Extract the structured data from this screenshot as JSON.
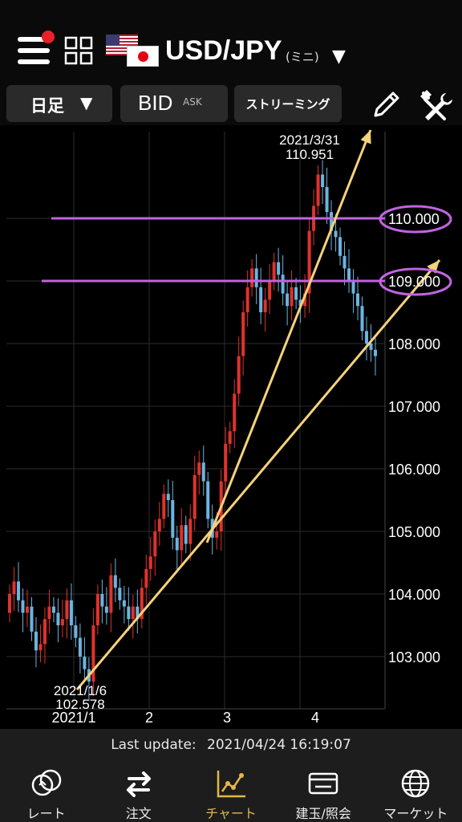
{
  "header": {
    "pair": "USD/JPY",
    "pair_sub": "(ミニ)",
    "menu_badge": true
  },
  "toolbar": {
    "period_label": "日足",
    "bid_label": "BID",
    "ask_label": "ASK",
    "streaming_label": "ストリーミング"
  },
  "chart_data": {
    "type": "candlestick",
    "y_ticks": [
      "110.000",
      "109.000",
      "108.000",
      "107.000",
      "106.000",
      "105.000",
      "104.000",
      "103.000"
    ],
    "x_ticks": [
      "2021/1",
      "2",
      "3",
      "4"
    ],
    "ylim": [
      102.2,
      111.4
    ],
    "high_marker": {
      "date": "2021/3/31",
      "value": "110.951"
    },
    "low_marker": {
      "date": "2021/1/6",
      "value": "102.578"
    },
    "horizontal_lines": [
      110.0,
      109.0
    ],
    "highlighted_levels": [
      "110.000",
      "109.000"
    ],
    "trendlines": [
      {
        "from": [
          "2021/1/6",
          102.58
        ],
        "to": [
          "2021/4/23",
          109.0
        ]
      },
      {
        "from": [
          "2021/2/26",
          104.9
        ],
        "to": [
          "2021/4/1",
          111.2
        ]
      }
    ],
    "candles_close": [
      104.0,
      104.2,
      103.9,
      103.7,
      103.8,
      103.4,
      103.1,
      103.2,
      103.6,
      103.8,
      103.7,
      103.5,
      103.6,
      103.9,
      103.5,
      103.3,
      103.0,
      102.8,
      102.6,
      103.5,
      104.0,
      103.8,
      103.7,
      104.3,
      104.1,
      103.9,
      103.8,
      103.6,
      103.8,
      103.6,
      104.1,
      104.4,
      104.6,
      105.0,
      105.2,
      105.6,
      105.5,
      104.9,
      104.7,
      105.1,
      104.8,
      105.2,
      105.9,
      106.1,
      105.8,
      105.2,
      104.9,
      105.0,
      105.8,
      106.4,
      106.6,
      107.2,
      107.8,
      108.5,
      108.9,
      109.2,
      108.9,
      108.5,
      108.7,
      109.0,
      109.3,
      109.1,
      108.8,
      108.6,
      108.9,
      108.7,
      108.6,
      108.8,
      109.8,
      110.2,
      110.7,
      110.5,
      110.1,
      109.8,
      109.7,
      109.4,
      109.2,
      109.0,
      108.8,
      108.6,
      108.2,
      108.0,
      107.9,
      107.8
    ],
    "colors": {
      "up": "#e0322c",
      "down": "#6cb4e0",
      "trendline": "#f5d27c",
      "hline": "#c064e0"
    }
  },
  "status": {
    "last_update_label": "Last update:",
    "last_update_value": "2021/04/24 16:19:07"
  },
  "nav": {
    "items": [
      {
        "label": "レート",
        "icon": "rate-icon"
      },
      {
        "label": "注文",
        "icon": "order-icon"
      },
      {
        "label": "チャート",
        "icon": "chart-icon",
        "active": true
      },
      {
        "label": "建玉/照会",
        "icon": "position-icon"
      },
      {
        "label": "マーケット",
        "icon": "globe-icon"
      }
    ]
  }
}
